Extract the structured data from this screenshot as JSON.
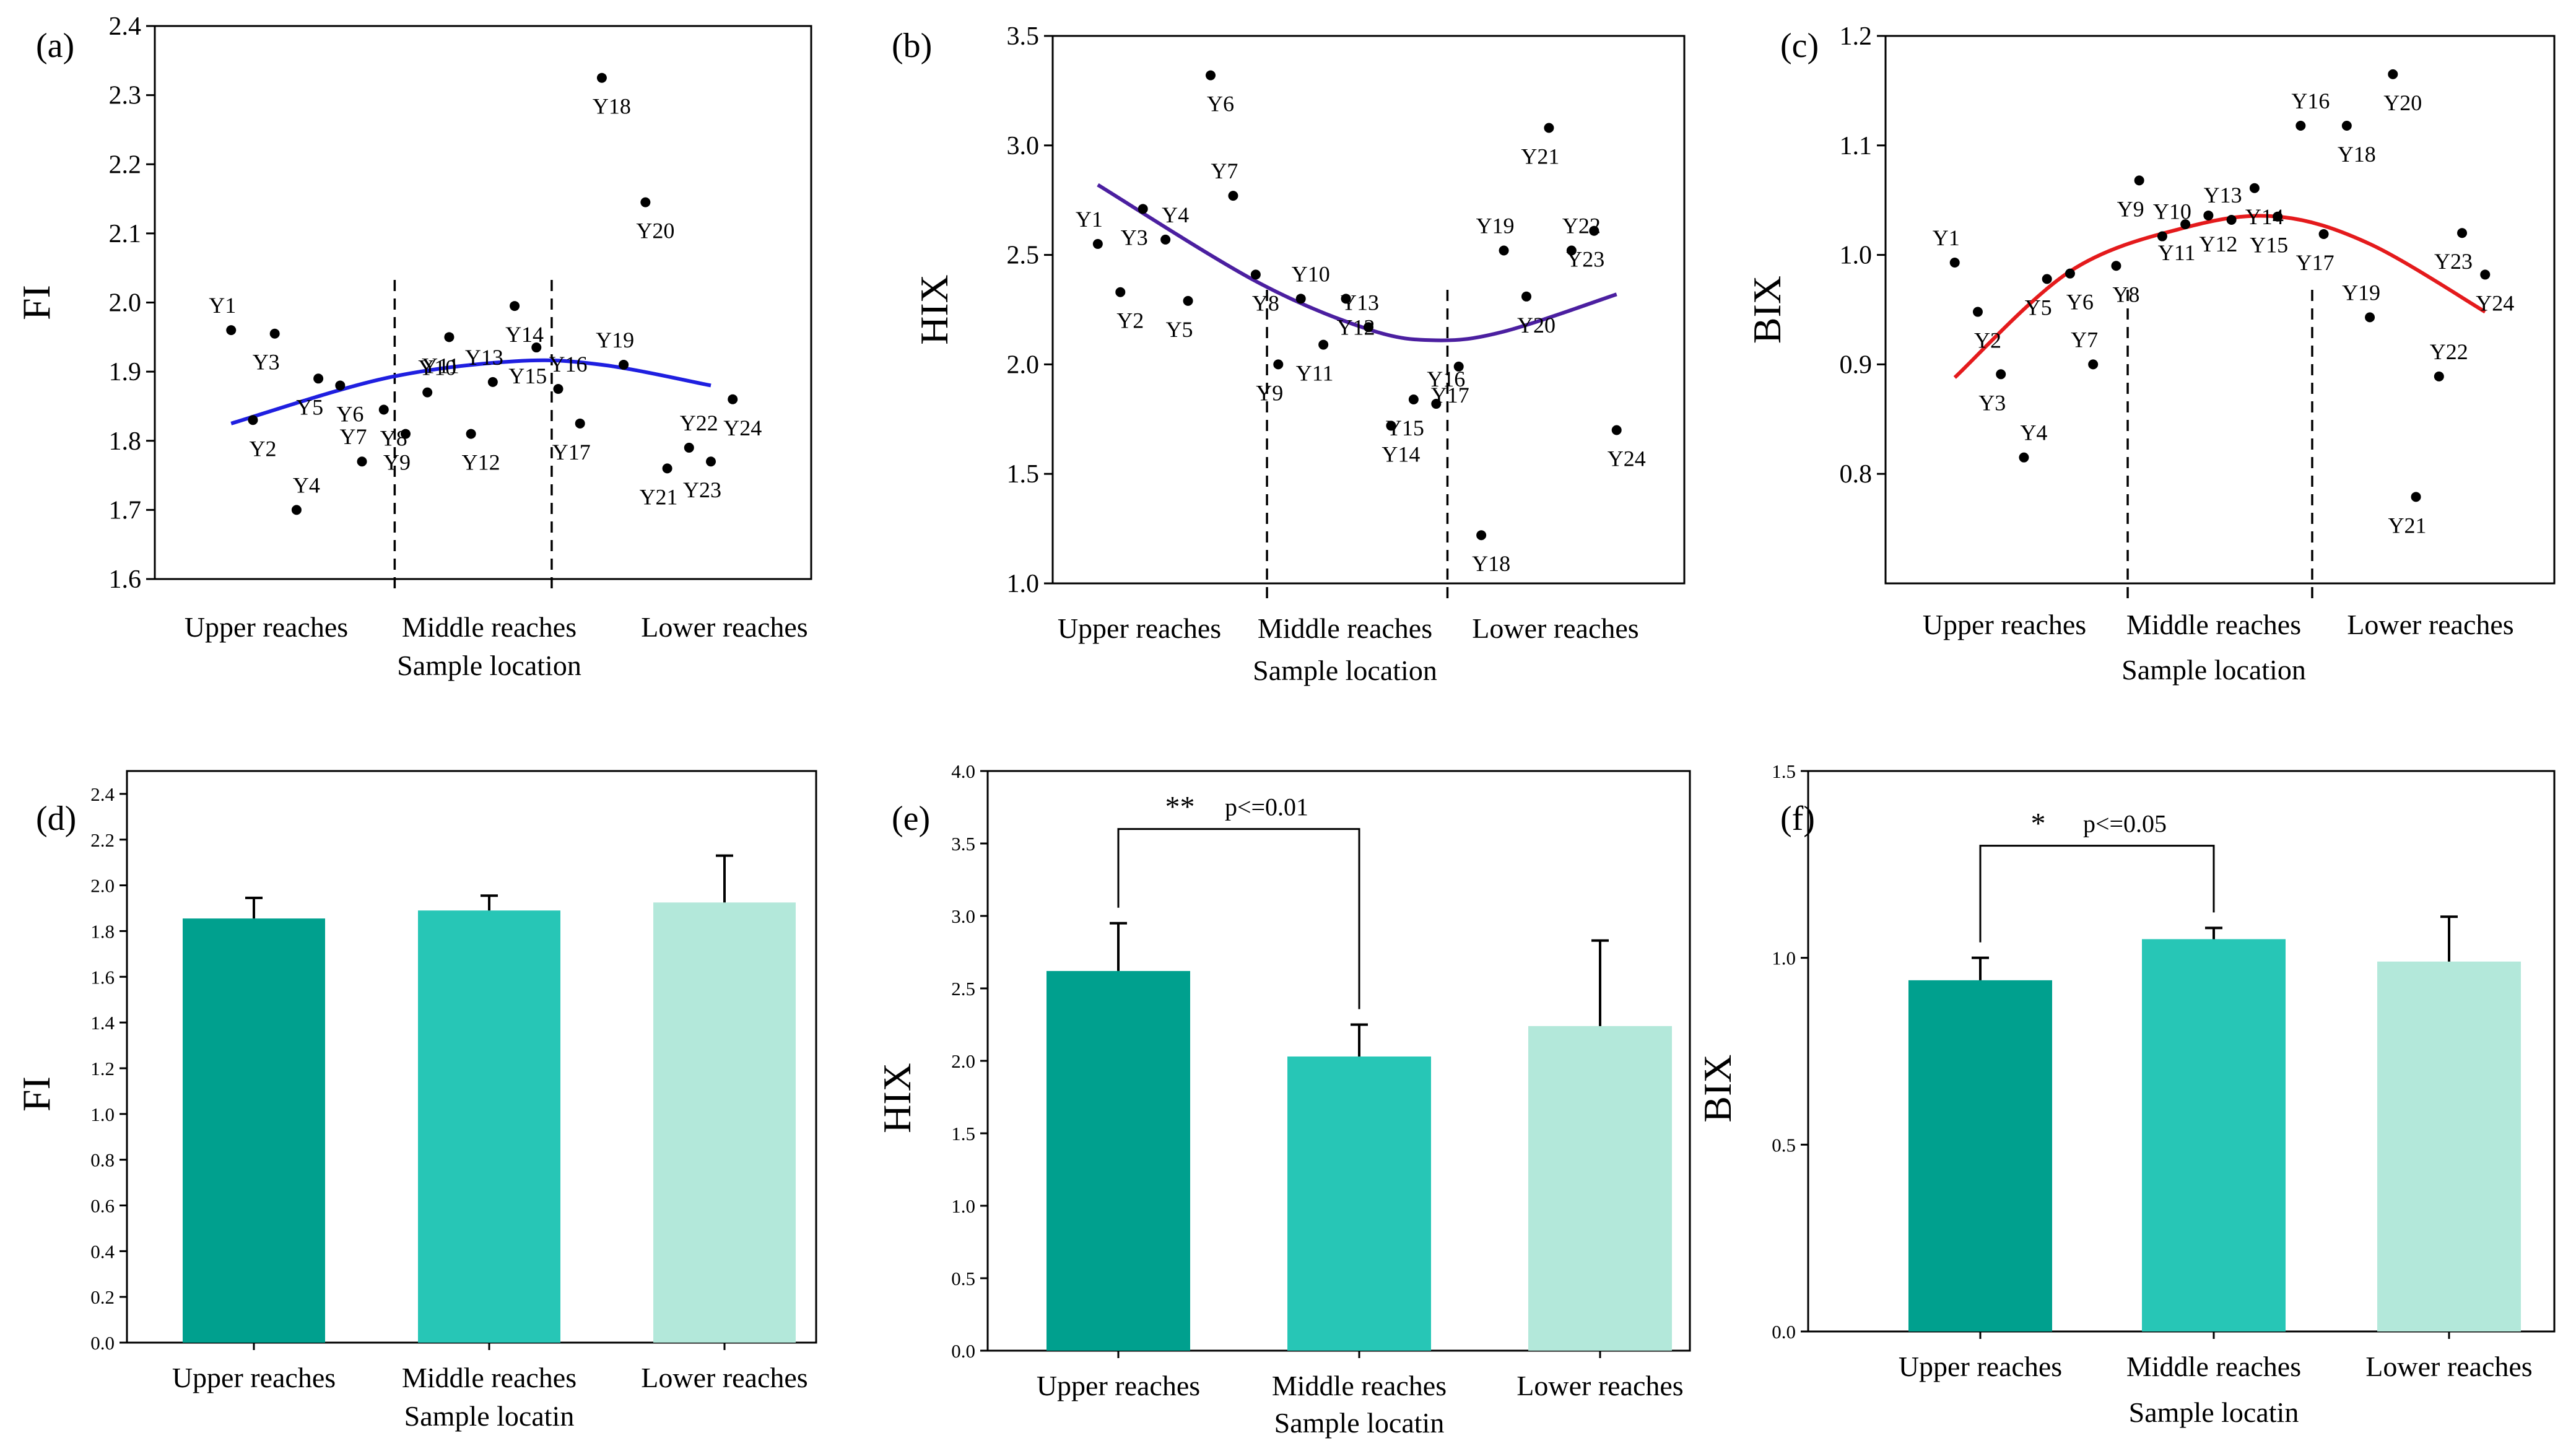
{
  "colors": {
    "fit_a": "#1f1fe0",
    "fit_b": "#4b1fa0",
    "fit_c": "#e41a1c",
    "bar_upper": "#00a08e",
    "bar_middle": "#27c6b6",
    "bar_lower": "#b3e8da"
  },
  "chart_data": [
    {
      "panel": "(a)",
      "type": "scatter",
      "ylabel": "FI",
      "xlabel": "Sample location",
      "ylim": [
        1.6,
        2.4
      ],
      "yticks": [
        "1.6",
        "1.7",
        "1.8",
        "1.9",
        "2.0",
        "2.1",
        "2.2",
        "2.3",
        "2.4"
      ],
      "regions": [
        "Upper reaches",
        "Middle reaches",
        "Lower reaches"
      ],
      "region_boundaries": [
        8.5,
        15.7
      ],
      "points": [
        {
          "label": "Y1",
          "x": 1,
          "y": 1.96
        },
        {
          "label": "Y2",
          "x": 2,
          "y": 1.83
        },
        {
          "label": "Y3",
          "x": 3,
          "y": 1.955
        },
        {
          "label": "Y4",
          "x": 4,
          "y": 1.7
        },
        {
          "label": "Y5",
          "x": 5,
          "y": 1.89
        },
        {
          "label": "Y6",
          "x": 6,
          "y": 1.88
        },
        {
          "label": "Y7",
          "x": 7,
          "y": 1.77
        },
        {
          "label": "Y8",
          "x": 8,
          "y": 1.845
        },
        {
          "label": "Y9",
          "x": 9,
          "y": 1.81
        },
        {
          "label": "Y10",
          "x": 10,
          "y": 1.87
        },
        {
          "label": "Y11",
          "x": 11,
          "y": 1.95
        },
        {
          "label": "Y12",
          "x": 12,
          "y": 1.81
        },
        {
          "label": "Y13",
          "x": 13,
          "y": 1.885
        },
        {
          "label": "Y14",
          "x": 14,
          "y": 1.995
        },
        {
          "label": "Y15",
          "x": 15,
          "y": 1.935
        },
        {
          "label": "Y16",
          "x": 16,
          "y": 1.875
        },
        {
          "label": "Y17",
          "x": 17,
          "y": 1.825
        },
        {
          "label": "Y18",
          "x": 18,
          "y": 2.325
        },
        {
          "label": "Y19",
          "x": 19,
          "y": 1.91
        },
        {
          "label": "Y20",
          "x": 20,
          "y": 2.145
        },
        {
          "label": "Y21",
          "x": 21,
          "y": 1.76
        },
        {
          "label": "Y22",
          "x": 22,
          "y": 1.79
        },
        {
          "label": "Y23",
          "x": 23,
          "y": 1.77
        },
        {
          "label": "Y24",
          "x": 24,
          "y": 1.86
        }
      ],
      "fit": [
        {
          "x": 1,
          "y": 1.825
        },
        {
          "x": 8,
          "y": 1.89
        },
        {
          "x": 14,
          "y": 1.915
        },
        {
          "x": 18,
          "y": 1.91
        },
        {
          "x": 23,
          "y": 1.88
        }
      ]
    },
    {
      "panel": "(b)",
      "type": "scatter",
      "ylabel": "HIX",
      "xlabel": "Sample location",
      "ylim": [
        1.0,
        3.5
      ],
      "yticks": [
        "1.0",
        "1.5",
        "2.0",
        "2.5",
        "3.0",
        "3.5"
      ],
      "regions": [
        "Upper reaches",
        "Middle reaches",
        "Lower reaches"
      ],
      "region_boundaries": [
        8.5,
        16.5
      ],
      "points": [
        {
          "label": "Y1",
          "x": 1,
          "y": 2.55
        },
        {
          "label": "Y2",
          "x": 2,
          "y": 2.33
        },
        {
          "label": "Y3",
          "x": 3,
          "y": 2.71
        },
        {
          "label": "Y4",
          "x": 4,
          "y": 2.57
        },
        {
          "label": "Y5",
          "x": 5,
          "y": 2.29
        },
        {
          "label": "Y6",
          "x": 6,
          "y": 3.32
        },
        {
          "label": "Y7",
          "x": 7,
          "y": 2.77
        },
        {
          "label": "Y8",
          "x": 8,
          "y": 2.41
        },
        {
          "label": "Y9",
          "x": 9,
          "y": 2.0
        },
        {
          "label": "Y10",
          "x": 10,
          "y": 2.3
        },
        {
          "label": "Y11",
          "x": 11,
          "y": 2.09
        },
        {
          "label": "Y12",
          "x": 12,
          "y": 2.3
        },
        {
          "label": "Y13",
          "x": 13,
          "y": 2.17
        },
        {
          "label": "Y14",
          "x": 14,
          "y": 1.72
        },
        {
          "label": "Y15",
          "x": 15,
          "y": 1.84
        },
        {
          "label": "Y16",
          "x": 16,
          "y": 1.82
        },
        {
          "label": "Y17",
          "x": 17,
          "y": 1.99
        },
        {
          "label": "Y18",
          "x": 18,
          "y": 1.22
        },
        {
          "label": "Y19",
          "x": 19,
          "y": 2.52
        },
        {
          "label": "Y20",
          "x": 20,
          "y": 2.31
        },
        {
          "label": "Y21",
          "x": 21,
          "y": 3.08
        },
        {
          "label": "Y22",
          "x": 22,
          "y": 2.52
        },
        {
          "label": "Y23",
          "x": 23,
          "y": 2.61
        },
        {
          "label": "Y24",
          "x": 24,
          "y": 1.7
        }
      ],
      "fit": [
        {
          "x": 1,
          "y": 2.82
        },
        {
          "x": 8,
          "y": 2.38
        },
        {
          "x": 13,
          "y": 2.16
        },
        {
          "x": 16,
          "y": 2.11
        },
        {
          "x": 19,
          "y": 2.15
        },
        {
          "x": 24,
          "y": 2.32
        }
      ]
    },
    {
      "panel": "(c)",
      "type": "scatter",
      "ylabel": "BIX",
      "xlabel": "Sample location",
      "ylim": [
        0.7,
        1.2
      ],
      "yticks": [
        "0.8",
        "0.9",
        "1.0",
        "1.1",
        "1.2"
      ],
      "regions": [
        "Upper reaches",
        "Middle reaches",
        "Lower reaches"
      ],
      "region_boundaries": [
        8.5,
        16.5
      ],
      "points": [
        {
          "label": "Y1",
          "x": 1,
          "y": 0.993
        },
        {
          "label": "Y2",
          "x": 2,
          "y": 0.948
        },
        {
          "label": "Y3",
          "x": 3,
          "y": 0.891
        },
        {
          "label": "Y4",
          "x": 4,
          "y": 0.815
        },
        {
          "label": "Y5",
          "x": 5,
          "y": 0.978
        },
        {
          "label": "Y6",
          "x": 6,
          "y": 0.983
        },
        {
          "label": "Y7",
          "x": 7,
          "y": 0.9
        },
        {
          "label": "Y8",
          "x": 8,
          "y": 0.99
        },
        {
          "label": "Y9",
          "x": 9,
          "y": 1.068
        },
        {
          "label": "Y10",
          "x": 10,
          "y": 1.017
        },
        {
          "label": "Y11",
          "x": 11,
          "y": 1.028
        },
        {
          "label": "Y12",
          "x": 12,
          "y": 1.036
        },
        {
          "label": "Y13",
          "x": 13,
          "y": 1.032
        },
        {
          "label": "Y14",
          "x": 14,
          "y": 1.061
        },
        {
          "label": "Y15",
          "x": 15,
          "y": 1.035
        },
        {
          "label": "Y16",
          "x": 16,
          "y": 1.118
        },
        {
          "label": "Y17",
          "x": 17,
          "y": 1.019
        },
        {
          "label": "Y18",
          "x": 18,
          "y": 1.118
        },
        {
          "label": "Y19",
          "x": 19,
          "y": 0.943
        },
        {
          "label": "Y20",
          "x": 20,
          "y": 1.165
        },
        {
          "label": "Y21",
          "x": 21,
          "y": 0.779
        },
        {
          "label": "Y22",
          "x": 22,
          "y": 0.889
        },
        {
          "label": "Y23",
          "x": 23,
          "y": 1.02
        },
        {
          "label": "Y24",
          "x": 24,
          "y": 0.982
        }
      ],
      "fit": [
        {
          "x": 1,
          "y": 0.888
        },
        {
          "x": 6,
          "y": 0.985
        },
        {
          "x": 11,
          "y": 1.025
        },
        {
          "x": 15,
          "y": 1.035
        },
        {
          "x": 19,
          "y": 1.01
        },
        {
          "x": 24,
          "y": 0.948
        }
      ]
    },
    {
      "panel": "(d)",
      "type": "bar",
      "ylabel": "FI",
      "xlabel": "Sample locatin",
      "ylim": [
        0,
        2.5
      ],
      "yticks": [
        "0.0",
        "0.2",
        "0.4",
        "0.6",
        "0.8",
        "1.0",
        "1.2",
        "1.4",
        "1.6",
        "1.8",
        "2.0",
        "2.2",
        "2.4"
      ],
      "categories": [
        "Upper reaches",
        "Middle reaches",
        "Lower reaches"
      ],
      "values": [
        1.855,
        1.89,
        1.925
      ],
      "errors": [
        0.09,
        0.065,
        0.205
      ],
      "significance": null
    },
    {
      "panel": "(e)",
      "type": "bar",
      "ylabel": "HIX",
      "xlabel": "Sample locatin",
      "ylim": [
        0,
        4.0
      ],
      "yticks": [
        "0.0",
        "0.5",
        "1.0",
        "1.5",
        "2.0",
        "2.5",
        "3.0",
        "3.5",
        "4.0"
      ],
      "categories": [
        "Upper reaches",
        "Middle reaches",
        "Lower reaches"
      ],
      "values": [
        2.62,
        2.03,
        2.24
      ],
      "errors": [
        0.33,
        0.22,
        0.59
      ],
      "significance": {
        "from": 0,
        "to": 1,
        "level": 3.6,
        "stars": "**",
        "label": "p<=0.01"
      }
    },
    {
      "panel": "(f)",
      "type": "bar",
      "ylabel": "BIX",
      "xlabel": "Sample locatin",
      "ylim": [
        0,
        1.5
      ],
      "yticks": [
        "0.0",
        "0.5",
        "1.0",
        "1.5"
      ],
      "categories": [
        "Upper reaches",
        "Middle reaches",
        "Lower reaches"
      ],
      "values": [
        0.94,
        1.05,
        0.99
      ],
      "errors": [
        0.06,
        0.03,
        0.12
      ],
      "significance": {
        "from": 0,
        "to": 1,
        "level": 1.3,
        "stars": "*",
        "label": "p<=0.05"
      }
    }
  ]
}
